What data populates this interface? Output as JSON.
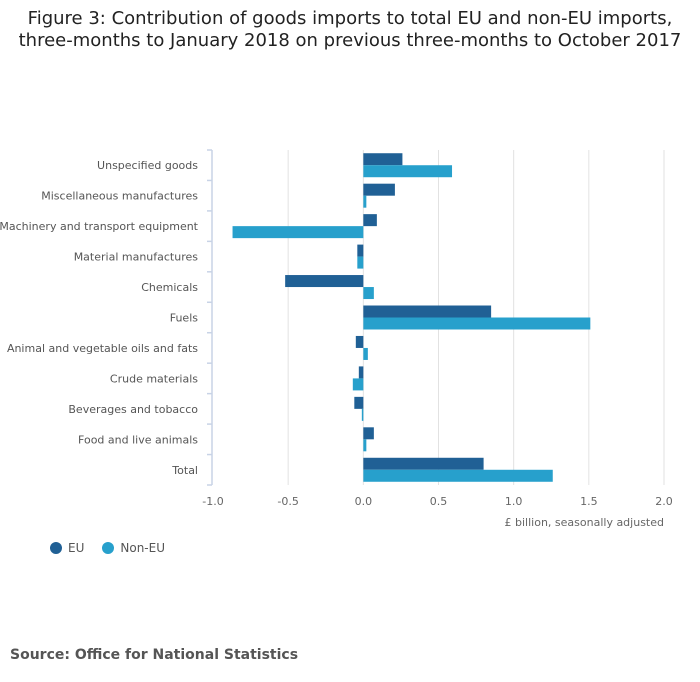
{
  "title_line1": "Figure 3: Contribution of goods imports to total EU and non-EU imports,",
  "title_line2": "three-months to January 2018 on previous three-months to October 2017",
  "source": "Source: Office for National Statistics",
  "chart_data": {
    "type": "bar",
    "orientation": "horizontal",
    "categories": [
      "Unspecified goods",
      "Miscellaneous manufactures",
      "Machinery and transport equipment",
      "Material manufactures",
      "Chemicals",
      "Fuels",
      "Animal and vegetable oils and fats",
      "Crude materials",
      "Beverages and tobacco",
      "Food and live animals",
      "Total"
    ],
    "series": [
      {
        "name": "EU",
        "color": "#206095",
        "values": [
          0.26,
          0.21,
          0.09,
          -0.04,
          -0.52,
          0.85,
          -0.05,
          -0.03,
          -0.06,
          0.07,
          0.8
        ]
      },
      {
        "name": "Non-EU",
        "color": "#27a0cc",
        "values": [
          0.59,
          0.02,
          -0.87,
          -0.04,
          0.07,
          1.51,
          0.03,
          -0.07,
          -0.01,
          0.02,
          1.26
        ]
      }
    ],
    "xlabel": "£ billion, seasonally adjusted",
    "xlim": [
      -1.0,
      2.0
    ],
    "xticks": [
      "-1.0",
      "-0.5",
      "0.0",
      "0.5",
      "1.0",
      "1.5",
      "2.0"
    ],
    "grid": true,
    "legend_placement": "bottom-left"
  }
}
